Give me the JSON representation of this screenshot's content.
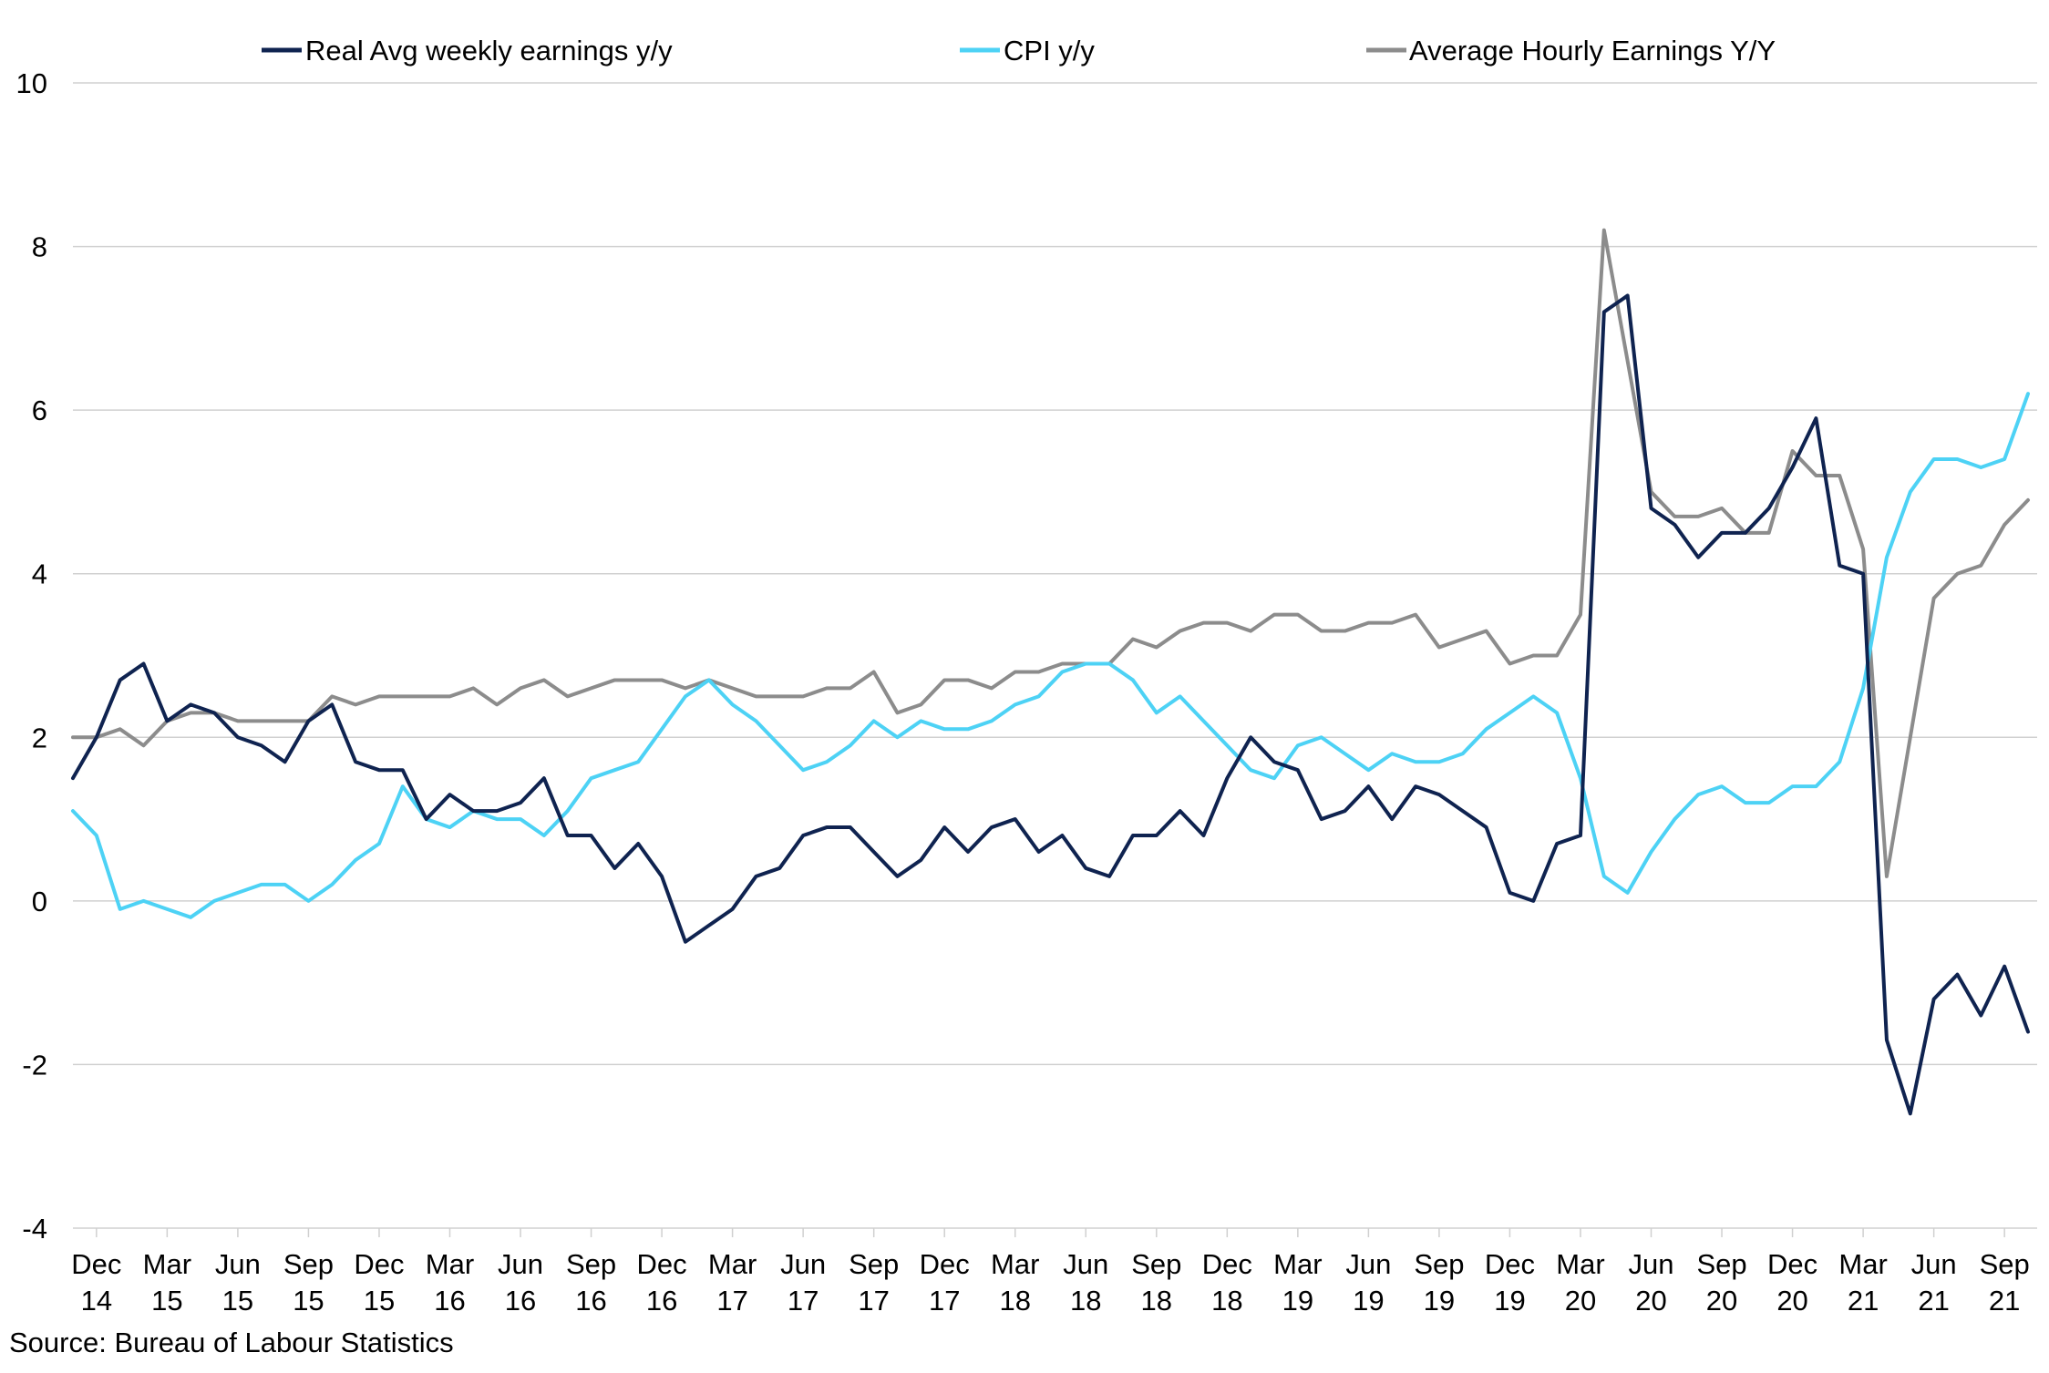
{
  "chart_data": {
    "type": "line",
    "title": "",
    "xlabel": "",
    "ylabel": "",
    "ylim": [
      -4,
      10
    ],
    "yticks": [
      -4,
      -2,
      0,
      2,
      4,
      6,
      8,
      10
    ],
    "grid": "horizontal",
    "legend_position": "top",
    "source": "Source: Bureau of Labour Statistics",
    "x_start": "Nov 14",
    "x_end": "Oct 21",
    "xtick_labels": [
      {
        "month": "Dec",
        "year": "14"
      },
      {
        "month": "Mar",
        "year": "15"
      },
      {
        "month": "Jun",
        "year": "15"
      },
      {
        "month": "Sep",
        "year": "15"
      },
      {
        "month": "Dec",
        "year": "15"
      },
      {
        "month": "Mar",
        "year": "16"
      },
      {
        "month": "Jun",
        "year": "16"
      },
      {
        "month": "Sep",
        "year": "16"
      },
      {
        "month": "Dec",
        "year": "16"
      },
      {
        "month": "Mar",
        "year": "17"
      },
      {
        "month": "Jun",
        "year": "17"
      },
      {
        "month": "Sep",
        "year": "17"
      },
      {
        "month": "Dec",
        "year": "17"
      },
      {
        "month": "Mar",
        "year": "18"
      },
      {
        "month": "Jun",
        "year": "18"
      },
      {
        "month": "Sep",
        "year": "18"
      },
      {
        "month": "Dec",
        "year": "18"
      },
      {
        "month": "Mar",
        "year": "19"
      },
      {
        "month": "Jun",
        "year": "19"
      },
      {
        "month": "Sep",
        "year": "19"
      },
      {
        "month": "Dec",
        "year": "19"
      },
      {
        "month": "Mar",
        "year": "20"
      },
      {
        "month": "Jun",
        "year": "20"
      },
      {
        "month": "Sep",
        "year": "20"
      },
      {
        "month": "Dec",
        "year": "20"
      },
      {
        "month": "Mar",
        "year": "21"
      },
      {
        "month": "Jun",
        "year": "21"
      },
      {
        "month": "Sep",
        "year": "21"
      }
    ],
    "series": [
      {
        "name": "Real Avg weekly earnings y/y",
        "color": "#0f2350",
        "values": [
          1.5,
          2.0,
          2.7,
          2.9,
          2.2,
          2.4,
          2.3,
          2.0,
          1.9,
          1.7,
          2.2,
          2.4,
          1.7,
          1.6,
          1.6,
          1.0,
          1.3,
          1.1,
          1.1,
          1.2,
          1.5,
          0.8,
          0.8,
          0.4,
          0.7,
          0.3,
          -0.5,
          -0.3,
          -0.1,
          0.3,
          0.4,
          0.8,
          0.9,
          0.9,
          0.6,
          0.3,
          0.5,
          0.9,
          0.6,
          0.9,
          1.0,
          0.6,
          0.8,
          0.4,
          0.3,
          0.8,
          0.8,
          1.1,
          0.8,
          1.5,
          2.0,
          1.7,
          1.6,
          1.0,
          1.1,
          1.4,
          1.0,
          1.4,
          1.3,
          1.1,
          0.9,
          0.1,
          0.0,
          0.7,
          0.8,
          7.2,
          7.4,
          4.8,
          4.6,
          4.2,
          4.5,
          4.5,
          4.8,
          5.3,
          5.9,
          4.1,
          4.0,
          -1.7,
          -2.6,
          -1.2,
          -0.9,
          -1.4,
          -0.8,
          -1.6
        ]
      },
      {
        "name": "CPI y/y",
        "color": "#4dd2f5",
        "values": [
          1.1,
          0.8,
          -0.1,
          0.0,
          -0.1,
          -0.2,
          0.0,
          0.1,
          0.2,
          0.2,
          0.0,
          0.2,
          0.5,
          0.7,
          1.4,
          1.0,
          0.9,
          1.1,
          1.0,
          1.0,
          0.8,
          1.1,
          1.5,
          1.6,
          1.7,
          2.1,
          2.5,
          2.7,
          2.4,
          2.2,
          1.9,
          1.6,
          1.7,
          1.9,
          2.2,
          2.0,
          2.2,
          2.1,
          2.1,
          2.2,
          2.4,
          2.5,
          2.8,
          2.9,
          2.9,
          2.7,
          2.3,
          2.5,
          2.2,
          1.9,
          1.6,
          1.5,
          1.9,
          2.0,
          1.8,
          1.6,
          1.8,
          1.7,
          1.7,
          1.8,
          2.1,
          2.3,
          2.5,
          2.3,
          1.5,
          0.3,
          0.1,
          0.6,
          1.0,
          1.3,
          1.4,
          1.2,
          1.2,
          1.4,
          1.4,
          1.7,
          2.6,
          4.2,
          5.0,
          5.4,
          5.4,
          5.3,
          5.4,
          6.2
        ]
      },
      {
        "name": "Average Hourly Earnings Y/Y",
        "color": "#8c8c8c",
        "values": [
          2.0,
          2.0,
          2.1,
          1.9,
          2.2,
          2.3,
          2.3,
          2.2,
          2.2,
          2.2,
          2.2,
          2.5,
          2.4,
          2.5,
          2.5,
          2.5,
          2.5,
          2.6,
          2.4,
          2.6,
          2.7,
          2.5,
          2.6,
          2.7,
          2.7,
          2.7,
          2.6,
          2.7,
          2.6,
          2.5,
          2.5,
          2.5,
          2.6,
          2.6,
          2.8,
          2.3,
          2.4,
          2.7,
          2.7,
          2.6,
          2.8,
          2.8,
          2.9,
          2.9,
          2.9,
          3.2,
          3.1,
          3.3,
          3.4,
          3.4,
          3.3,
          3.5,
          3.5,
          3.3,
          3.3,
          3.4,
          3.4,
          3.5,
          3.1,
          3.2,
          3.3,
          2.9,
          3.0,
          3.0,
          3.5,
          8.2,
          6.6,
          5.0,
          4.7,
          4.7,
          4.8,
          4.5,
          4.5,
          5.5,
          5.2,
          5.2,
          4.3,
          0.3,
          2.0,
          3.7,
          4.0,
          4.1,
          4.6,
          4.9
        ]
      }
    ]
  }
}
